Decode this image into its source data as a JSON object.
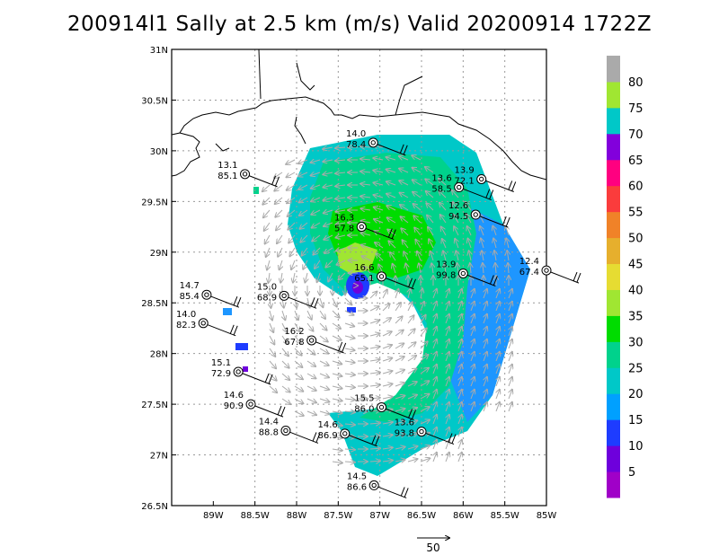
{
  "title": "200914l1 Sally at 2.5 km (m/s) Valid 20200914 1722Z",
  "map": {
    "lon_range": [
      -89.5,
      -85.0
    ],
    "lat_range": [
      26.5,
      31.0
    ],
    "lon_ticks": [
      {
        "value": -89.0,
        "label": "89W"
      },
      {
        "value": -88.5,
        "label": "88.5W"
      },
      {
        "value": -88.0,
        "label": "88W"
      },
      {
        "value": -87.5,
        "label": "87.5W"
      },
      {
        "value": -87.0,
        "label": "87W"
      },
      {
        "value": -86.5,
        "label": "86.5W"
      },
      {
        "value": -86.0,
        "label": "86W"
      },
      {
        "value": -85.5,
        "label": "85.5W"
      },
      {
        "value": -85.0,
        "label": "85W"
      }
    ],
    "lat_ticks": [
      {
        "value": 26.5,
        "label": "26.5N"
      },
      {
        "value": 27.0,
        "label": "27N"
      },
      {
        "value": 27.5,
        "label": "27.5N"
      },
      {
        "value": 28.0,
        "label": "28N"
      },
      {
        "value": 28.5,
        "label": "28.5N"
      },
      {
        "value": 29.0,
        "label": "29N"
      },
      {
        "value": 29.5,
        "label": "29.5N"
      },
      {
        "value": 30.0,
        "label": "30N"
      },
      {
        "value": 30.5,
        "label": "30.5N"
      },
      {
        "value": 31.0,
        "label": "31N"
      }
    ],
    "grid": true
  },
  "colorbar": {
    "labels": [
      "5",
      "10",
      "15",
      "20",
      "25",
      "30",
      "35",
      "40",
      "45",
      "50",
      "55",
      "60",
      "65",
      "70",
      "75",
      "80"
    ],
    "colors": [
      "#a000c8",
      "#6e00dc",
      "#1e3cff",
      "#00a0ff",
      "#00c8c8",
      "#00d28c",
      "#00dc00",
      "#a0e632",
      "#e6dc32",
      "#e6af2d",
      "#f08228",
      "#fa3c3c",
      "#ff0080",
      "#8200dc",
      "#00c8c8",
      "#a0e632",
      "#aaaaaa"
    ]
  },
  "stations": [
    {
      "lon": -87.08,
      "lat": 30.08,
      "label1": "14.0",
      "label2": "78.4"
    },
    {
      "lon": -88.62,
      "lat": 29.77,
      "label1": "13.1",
      "label2": "85.1"
    },
    {
      "lon": -85.78,
      "lat": 29.72,
      "label1": "13.9",
      "label2": "72.1"
    },
    {
      "lon": -86.05,
      "lat": 29.64,
      "label1": "13.6",
      "label2": "58.5"
    },
    {
      "lon": -85.85,
      "lat": 29.37,
      "label1": "12.6",
      "label2": "94.5"
    },
    {
      "lon": -87.22,
      "lat": 29.25,
      "label1": "16.3",
      "label2": "57.8"
    },
    {
      "lon": -86.0,
      "lat": 28.79,
      "label1": "13.9",
      "label2": "99.8"
    },
    {
      "lon": -85.0,
      "lat": 28.82,
      "label1": "12.4",
      "label2": "67.4"
    },
    {
      "lon": -86.98,
      "lat": 28.76,
      "label1": "16.6",
      "label2": "65.1"
    },
    {
      "lon": -89.08,
      "lat": 28.58,
      "label1": "14.7",
      "label2": "85.4"
    },
    {
      "lon": -88.15,
      "lat": 28.57,
      "label1": "15.0",
      "label2": "68.9"
    },
    {
      "lon": -89.12,
      "lat": 28.3,
      "label1": "14.0",
      "label2": "82.3"
    },
    {
      "lon": -87.82,
      "lat": 28.13,
      "label1": "16.2",
      "label2": "67.8"
    },
    {
      "lon": -88.7,
      "lat": 27.82,
      "label1": "15.1",
      "label2": "72.9"
    },
    {
      "lon": -88.55,
      "lat": 27.5,
      "label1": "14.6",
      "label2": "90.9"
    },
    {
      "lon": -86.98,
      "lat": 27.47,
      "label1": "15.5",
      "label2": "86.0"
    },
    {
      "lon": -88.13,
      "lat": 27.24,
      "label1": "14.4",
      "label2": "88.8"
    },
    {
      "lon": -87.42,
      "lat": 27.21,
      "label1": "14.6",
      "label2": "86.9"
    },
    {
      "lon": -86.5,
      "lat": 27.23,
      "label1": "13.6",
      "label2": "93.8"
    },
    {
      "lon": -87.07,
      "lat": 26.7,
      "label1": "14.5",
      "label2": "86.6"
    }
  ],
  "reference_vector": {
    "label": "50"
  }
}
